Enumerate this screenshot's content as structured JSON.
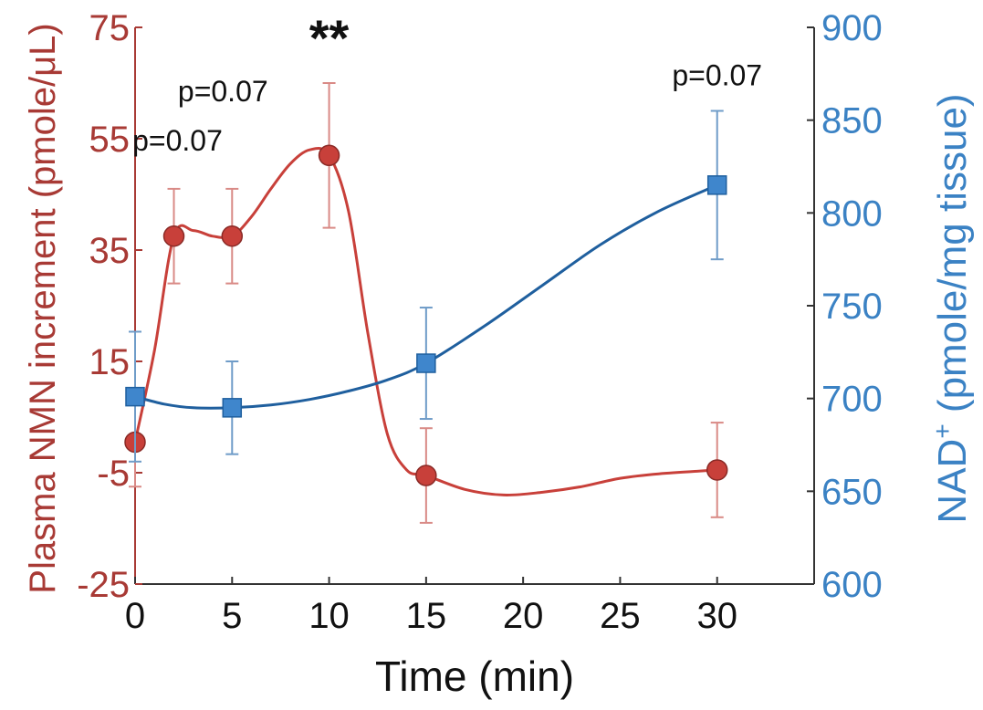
{
  "chart_data": {
    "type": "line",
    "title": "",
    "xlabel": "Time (min)",
    "ylabel_left": "Plasma NMN increment (pmole/μL)",
    "ylabel_right_main": "NAD",
    "ylabel_right_super": "+",
    "ylabel_right_rest": " (pmole/mg tissue)",
    "x_range": [
      0,
      35
    ],
    "x_ticks": [
      0,
      5,
      10,
      15,
      20,
      25,
      30
    ],
    "x_tick_labels": [
      "0",
      "5",
      "10",
      "15",
      "20",
      "25",
      "30"
    ],
    "y_left_range": [
      -25,
      75
    ],
    "y_left_ticks": [
      -25,
      -5,
      15,
      35,
      55,
      75
    ],
    "y_left_tick_labels": [
      "-25",
      "-5",
      "15",
      "35",
      "55",
      "75"
    ],
    "y_right_range": [
      600,
      900
    ],
    "y_right_ticks": [
      600,
      650,
      700,
      750,
      800,
      850,
      900
    ],
    "y_right_tick_labels": [
      "600",
      "650",
      "700",
      "750",
      "800",
      "850",
      "900"
    ],
    "series": [
      {
        "name": "Plasma NMN increment",
        "axis": "left",
        "color": "#c8403a",
        "marker": "circle",
        "x": [
          0,
          2,
          5,
          10,
          15,
          30
        ],
        "y": [
          0.5,
          37.5,
          37.5,
          52,
          -5.5,
          -4.5
        ],
        "err": [
          8,
          8.5,
          8.5,
          13,
          8.5,
          8.5
        ],
        "curve_x": [
          0,
          1,
          2,
          3,
          4,
          5,
          6,
          7,
          8,
          9,
          10,
          11,
          12,
          13,
          14,
          15,
          17,
          19,
          21,
          23,
          25,
          27,
          30
        ],
        "curve_y": [
          0.5,
          17,
          37.5,
          38.5,
          37.5,
          37.5,
          41,
          46,
          50.5,
          53,
          52,
          42,
          20,
          2,
          -4.5,
          -5.5,
          -8,
          -9,
          -8.5,
          -7.5,
          -6,
          -5.2,
          -4.5
        ]
      },
      {
        "name": "NAD+",
        "axis": "right",
        "color": "#1f5f9e",
        "marker": "square",
        "marker_color": "#3f86cc",
        "x": [
          0,
          5,
          15,
          30
        ],
        "y": [
          701,
          695,
          719,
          815
        ],
        "err": [
          35,
          25,
          30,
          40
        ],
        "curve_x": [
          0,
          1.5,
          3,
          5,
          7,
          9,
          11,
          13,
          15,
          18,
          21,
          24,
          27,
          30
        ],
        "curve_y": [
          701,
          697,
          695,
          695,
          696.5,
          699.5,
          704,
          710,
          719,
          739,
          761,
          783,
          801,
          815
        ]
      }
    ],
    "annotations": [
      {
        "text": "p=0.07",
        "x": 2,
        "series": "Plasma NMN increment"
      },
      {
        "text": "p=0.07",
        "x": 5,
        "series": "Plasma NMN increment"
      },
      {
        "text": "**",
        "x": 10,
        "series": "Plasma NMN increment"
      },
      {
        "text": "p=0.07",
        "x": 30,
        "series": "NAD+"
      }
    ],
    "colors": {
      "left_axis": "#a83a35",
      "right_axis": "#3b82c4",
      "nmn_line": "#c8403a",
      "nmn_marker": "#c8403a",
      "nmn_error": "#d98a86",
      "nad_line": "#1f5f9e",
      "nad_marker": "#3f86cc",
      "nad_error": "#6f9cc8",
      "axis_line": "#333333",
      "text": "#111111"
    }
  }
}
